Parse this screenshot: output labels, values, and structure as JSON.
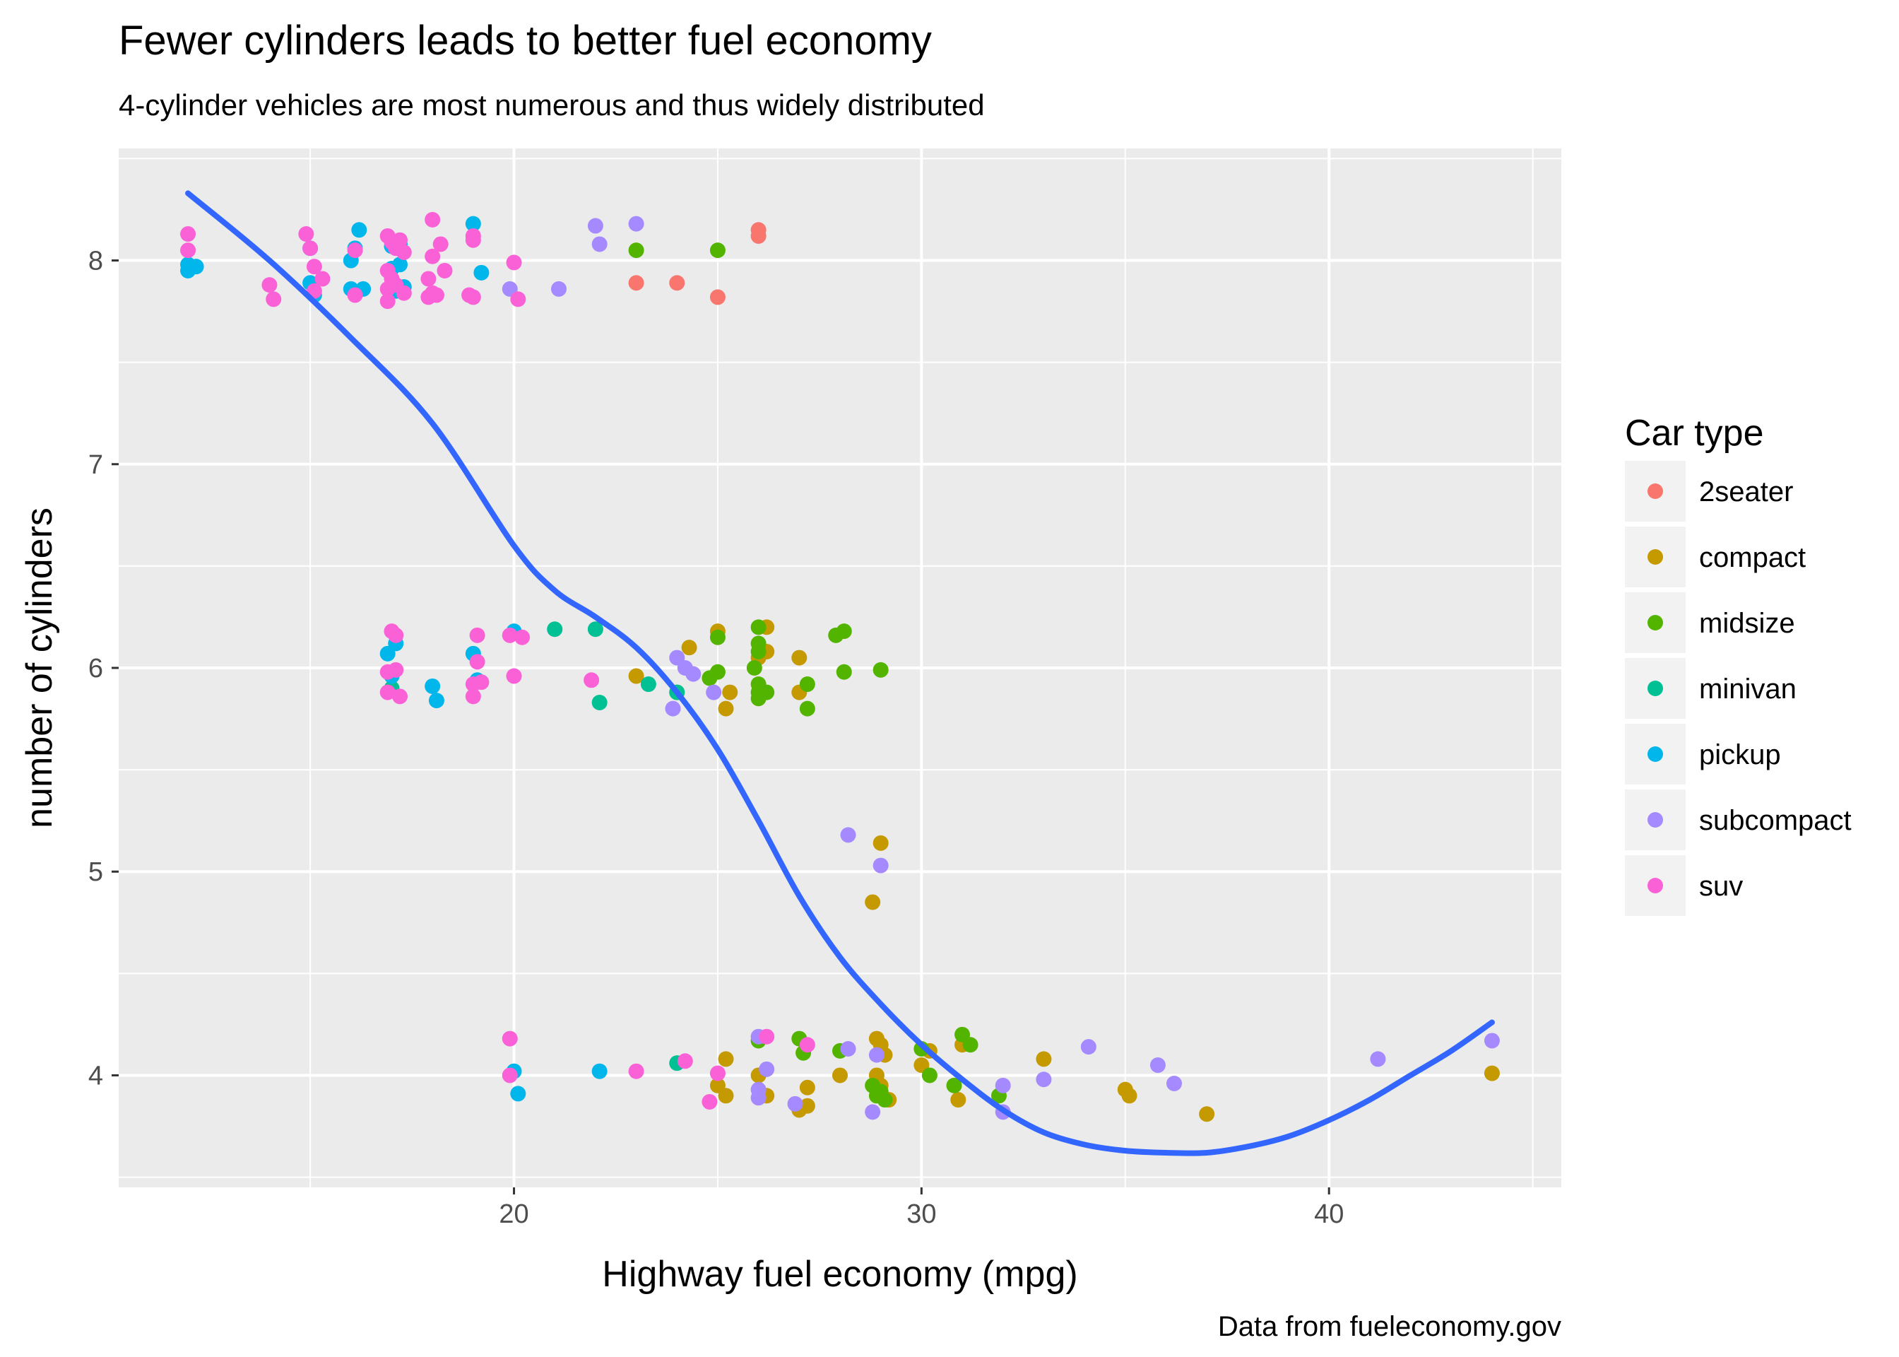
{
  "chart_data": {
    "type": "scatter",
    "title": "Fewer cylinders leads to better fuel economy",
    "subtitle": "4-cylinder vehicles are most numerous and thus widely distributed",
    "xlabel": "Highway fuel economy (mpg)",
    "ylabel": "number of cylinders",
    "caption": "Data from fueleconomy.gov",
    "xlim": [
      10.3,
      45.7
    ],
    "ylim": [
      3.45,
      8.55
    ],
    "x_ticks": [
      20,
      30,
      40
    ],
    "x_minor_ticks": [
      15,
      25,
      35,
      45
    ],
    "y_ticks": [
      4,
      5,
      6,
      7,
      8
    ],
    "y_minor_ticks": [
      3.5,
      4.5,
      5.5,
      6.5,
      7.5,
      8.5
    ],
    "grid": true,
    "legend": {
      "title": "Car type",
      "position": "right",
      "entries": [
        {
          "label": "2seater",
          "color": "#F8766D"
        },
        {
          "label": "compact",
          "color": "#C49A00"
        },
        {
          "label": "midsize",
          "color": "#53B400"
        },
        {
          "label": "minivan",
          "color": "#00C094"
        },
        {
          "label": "pickup",
          "color": "#00B6EB"
        },
        {
          "label": "subcompact",
          "color": "#A58AFF"
        },
        {
          "label": "suv",
          "color": "#FB61D7"
        }
      ]
    },
    "smooth_line": {
      "color": "#3366FF",
      "points": [
        [
          12,
          8.33
        ],
        [
          14,
          8.0
        ],
        [
          16,
          7.62
        ],
        [
          18,
          7.2
        ],
        [
          20,
          6.6
        ],
        [
          21,
          6.38
        ],
        [
          22,
          6.25
        ],
        [
          23,
          6.1
        ],
        [
          24,
          5.88
        ],
        [
          25,
          5.6
        ],
        [
          26,
          5.25
        ],
        [
          27,
          4.88
        ],
        [
          28,
          4.58
        ],
        [
          29,
          4.35
        ],
        [
          30,
          4.15
        ],
        [
          31,
          3.98
        ],
        [
          32,
          3.83
        ],
        [
          33,
          3.72
        ],
        [
          34,
          3.66
        ],
        [
          35,
          3.63
        ],
        [
          36,
          3.62
        ],
        [
          37,
          3.62
        ],
        [
          38,
          3.65
        ],
        [
          39,
          3.7
        ],
        [
          40,
          3.78
        ],
        [
          41,
          3.88
        ],
        [
          42,
          4.0
        ],
        [
          43,
          4.12
        ],
        [
          44,
          4.26
        ]
      ]
    },
    "series": [
      {
        "name": "2seater",
        "color": "#F8766D",
        "points": [
          [
            26,
            8.15
          ],
          [
            26,
            8.12
          ],
          [
            23,
            7.89
          ],
          [
            24,
            7.89
          ],
          [
            25,
            7.82
          ]
        ]
      },
      {
        "name": "compact",
        "color": "#C49A00",
        "points": [
          [
            25,
            6.18
          ],
          [
            25.3,
            5.88
          ],
          [
            24.3,
            6.1
          ],
          [
            26,
            6.05
          ],
          [
            26.2,
            6.2
          ],
          [
            26.2,
            6.08
          ],
          [
            27,
            6.05
          ],
          [
            27,
            5.88
          ],
          [
            23,
            5.96
          ],
          [
            24,
            5.88
          ],
          [
            25.2,
            5.8
          ],
          [
            29,
            5.14
          ],
          [
            28.8,
            4.85
          ],
          [
            25.2,
            4.08
          ],
          [
            25,
            3.95
          ],
          [
            25.2,
            3.9
          ],
          [
            26,
            4.0
          ],
          [
            26.2,
            3.9
          ],
          [
            27,
            3.83
          ],
          [
            27.2,
            3.94
          ],
          [
            27.2,
            3.85
          ],
          [
            28,
            4.0
          ],
          [
            28.9,
            4.18
          ],
          [
            29,
            4.15
          ],
          [
            29.1,
            4.1
          ],
          [
            28.9,
            4.0
          ],
          [
            29,
            3.95
          ],
          [
            29.2,
            3.88
          ],
          [
            30,
            4.05
          ],
          [
            30.2,
            4.12
          ],
          [
            31,
            4.15
          ],
          [
            30.9,
            3.88
          ],
          [
            33,
            4.08
          ],
          [
            35,
            3.93
          ],
          [
            35.1,
            3.9
          ],
          [
            37,
            3.81
          ],
          [
            44,
            4.01
          ]
        ]
      },
      {
        "name": "midsize",
        "color": "#53B400",
        "points": [
          [
            23,
            8.05
          ],
          [
            25,
            8.05
          ],
          [
            24.8,
            5.95
          ],
          [
            25,
            6.15
          ],
          [
            25,
            5.98
          ],
          [
            26,
            6.2
          ],
          [
            26,
            6.12
          ],
          [
            26,
            6.08
          ],
          [
            25.9,
            6.0
          ],
          [
            26,
            5.92
          ],
          [
            26,
            5.88
          ],
          [
            26,
            5.85
          ],
          [
            26.2,
            5.88
          ],
          [
            27.2,
            5.92
          ],
          [
            27.2,
            5.8
          ],
          [
            27.9,
            6.16
          ],
          [
            28.1,
            6.18
          ],
          [
            28.1,
            5.98
          ],
          [
            29,
            5.99
          ],
          [
            26,
            4.17
          ],
          [
            27,
            4.18
          ],
          [
            27.1,
            4.11
          ],
          [
            28,
            4.12
          ],
          [
            28.8,
            3.95
          ],
          [
            28.9,
            3.9
          ],
          [
            29,
            3.92
          ],
          [
            29.1,
            3.88
          ],
          [
            30,
            4.13
          ],
          [
            30.2,
            4.0
          ],
          [
            30.8,
            3.95
          ],
          [
            31,
            4.2
          ],
          [
            31.2,
            4.15
          ],
          [
            31.9,
            3.9
          ]
        ]
      },
      {
        "name": "minivan",
        "color": "#00C094",
        "points": [
          [
            17,
            5.9
          ],
          [
            21,
            6.19
          ],
          [
            22,
            6.19
          ],
          [
            22.1,
            5.83
          ],
          [
            23.3,
            5.92
          ],
          [
            24,
            5.88
          ],
          [
            24,
            4.06
          ]
        ]
      },
      {
        "name": "pickup",
        "color": "#00B6EB",
        "points": [
          [
            12,
            7.98
          ],
          [
            12,
            7.95
          ],
          [
            12.2,
            7.97
          ],
          [
            15,
            8.06
          ],
          [
            15,
            7.89
          ],
          [
            15.1,
            7.83
          ],
          [
            16,
            8.0
          ],
          [
            16.1,
            8.06
          ],
          [
            16.2,
            8.15
          ],
          [
            16,
            7.86
          ],
          [
            16.3,
            7.86
          ],
          [
            17,
            8.07
          ],
          [
            17,
            7.96
          ],
          [
            17.2,
            7.98
          ],
          [
            17.2,
            8.08
          ],
          [
            17.1,
            7.85
          ],
          [
            17.3,
            7.87
          ],
          [
            19,
            8.18
          ],
          [
            19.2,
            7.94
          ],
          [
            16.9,
            6.07
          ],
          [
            17.1,
            6.12
          ],
          [
            17,
            5.96
          ],
          [
            18,
            5.91
          ],
          [
            18.1,
            5.84
          ],
          [
            19,
            6.07
          ],
          [
            19.1,
            5.94
          ],
          [
            20,
            6.18
          ],
          [
            20,
            4.02
          ],
          [
            20.1,
            3.91
          ],
          [
            22.1,
            4.02
          ]
        ]
      },
      {
        "name": "subcompact",
        "color": "#A58AFF",
        "points": [
          [
            22,
            8.17
          ],
          [
            22.1,
            8.08
          ],
          [
            23,
            8.18
          ],
          [
            19.9,
            7.86
          ],
          [
            21.1,
            7.86
          ],
          [
            24,
            6.05
          ],
          [
            24.2,
            6.0
          ],
          [
            24.4,
            5.97
          ],
          [
            24.9,
            5.88
          ],
          [
            23.9,
            5.8
          ],
          [
            28.2,
            5.18
          ],
          [
            29,
            5.03
          ],
          [
            26,
            4.19
          ],
          [
            26,
            3.93
          ],
          [
            26,
            3.89
          ],
          [
            26.2,
            4.03
          ],
          [
            26.9,
            3.86
          ],
          [
            28.2,
            4.13
          ],
          [
            28.9,
            4.1
          ],
          [
            28.8,
            3.82
          ],
          [
            32,
            3.95
          ],
          [
            32,
            3.82
          ],
          [
            33,
            3.98
          ],
          [
            34.1,
            4.14
          ],
          [
            35.8,
            4.05
          ],
          [
            36.2,
            3.96
          ],
          [
            41.2,
            4.08
          ],
          [
            44,
            4.17
          ]
        ]
      },
      {
        "name": "suv",
        "color": "#FB61D7",
        "points": [
          [
            12,
            8.13
          ],
          [
            12,
            8.05
          ],
          [
            14,
            7.88
          ],
          [
            14.1,
            7.81
          ],
          [
            14.9,
            8.13
          ],
          [
            15,
            8.06
          ],
          [
            15.1,
            7.97
          ],
          [
            15.3,
            7.91
          ],
          [
            15.1,
            7.85
          ],
          [
            16.1,
            8.05
          ],
          [
            16.1,
            7.83
          ],
          [
            16.9,
            8.12
          ],
          [
            17,
            8.09
          ],
          [
            17.1,
            8.06
          ],
          [
            17.2,
            8.1
          ],
          [
            17.3,
            8.04
          ],
          [
            16.9,
            7.95
          ],
          [
            17,
            7.91
          ],
          [
            17.1,
            7.88
          ],
          [
            17.3,
            7.84
          ],
          [
            16.9,
            7.8
          ],
          [
            16.9,
            7.86
          ],
          [
            18,
            8.2
          ],
          [
            18,
            8.02
          ],
          [
            18.2,
            8.08
          ],
          [
            18.3,
            7.95
          ],
          [
            17.9,
            7.91
          ],
          [
            18,
            7.84
          ],
          [
            18.1,
            7.83
          ],
          [
            17.9,
            7.82
          ],
          [
            19,
            8.12
          ],
          [
            19,
            8.1
          ],
          [
            18.9,
            7.83
          ],
          [
            19,
            7.82
          ],
          [
            20,
            7.99
          ],
          [
            20.1,
            7.81
          ],
          [
            17,
            6.18
          ],
          [
            17.1,
            6.16
          ],
          [
            16.9,
            5.98
          ],
          [
            17.1,
            5.99
          ],
          [
            16.9,
            5.88
          ],
          [
            17.2,
            5.86
          ],
          [
            19.1,
            6.16
          ],
          [
            19.1,
            6.03
          ],
          [
            19,
            5.92
          ],
          [
            19.2,
            5.93
          ],
          [
            19,
            5.86
          ],
          [
            19.9,
            6.16
          ],
          [
            20.2,
            6.15
          ],
          [
            20,
            5.96
          ],
          [
            21.9,
            5.94
          ],
          [
            19.9,
            4.18
          ],
          [
            19.9,
            4.0
          ],
          [
            23,
            4.02
          ],
          [
            24.2,
            4.07
          ],
          [
            25,
            4.01
          ],
          [
            24.8,
            3.87
          ],
          [
            26.2,
            4.19
          ],
          [
            27.2,
            4.15
          ]
        ]
      }
    ]
  }
}
